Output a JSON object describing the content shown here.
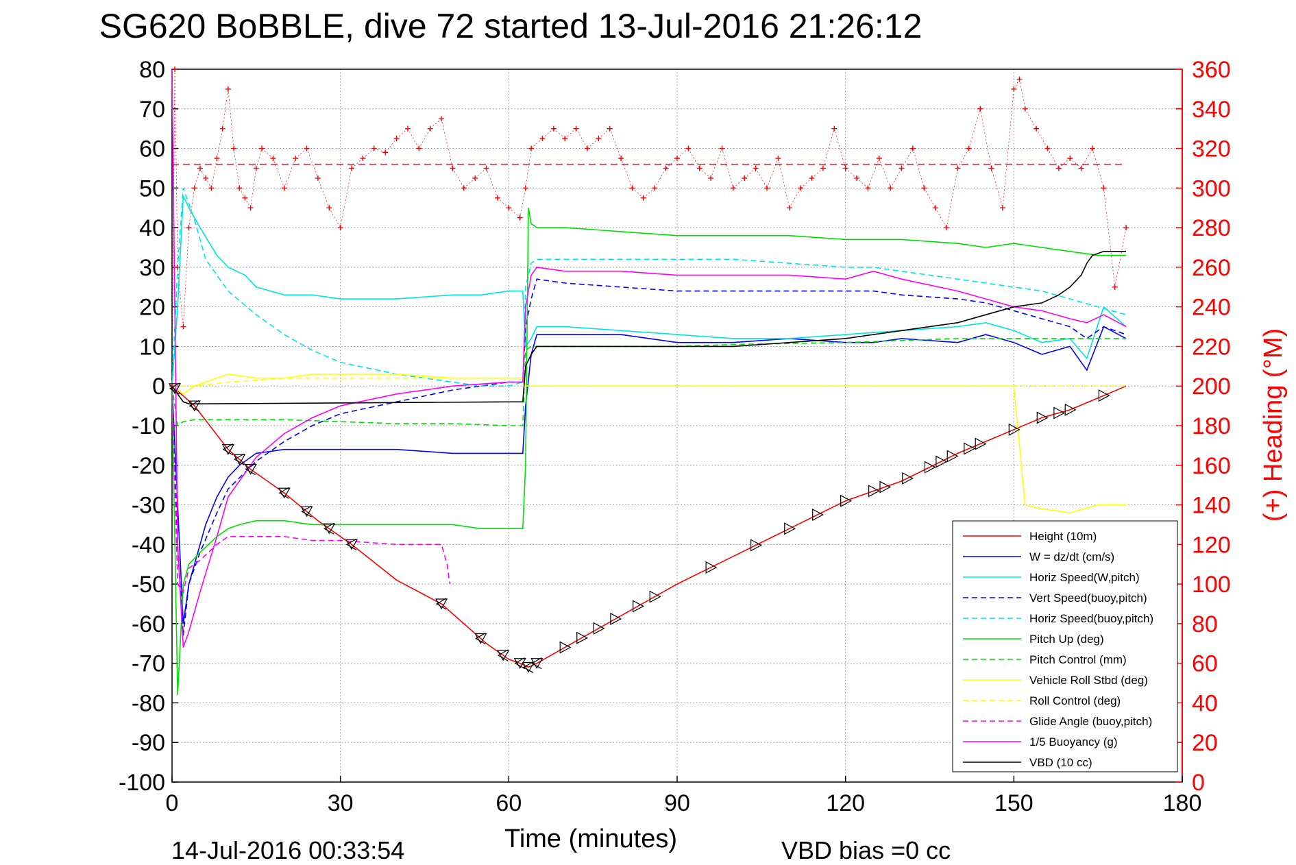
{
  "chart_data": {
    "type": "line",
    "title": "SG620 BoBBLE, dive 72 started 13-Jul-2016 21:26:12",
    "xlabel": "Time (minutes)",
    "ylabel_right": "(+) Heading (°M)",
    "xlim": [
      0,
      180
    ],
    "ylim": [
      -100,
      80
    ],
    "ylim_right": [
      0,
      360
    ],
    "x_ticks": [
      0,
      30,
      60,
      90,
      120,
      150,
      180
    ],
    "y_ticks": [
      80,
      70,
      60,
      50,
      40,
      30,
      20,
      10,
      0,
      -10,
      -20,
      -30,
      -40,
      -50,
      -60,
      -70,
      -80,
      -90,
      -100
    ],
    "y_ticks_right": [
      360,
      340,
      320,
      300,
      280,
      260,
      240,
      220,
      200,
      180,
      160,
      140,
      120,
      100,
      80,
      60,
      40,
      20,
      0
    ],
    "grid": true,
    "legend_position": "bottom-right",
    "footer_left": "14-Jul-2016 00:33:54",
    "footer_right": "VBD bias =0 cc",
    "heading_mean": 312,
    "colors": {
      "height": "#ff0000",
      "w": "#0000ff",
      "horiz": "#00e5e5",
      "pitch": "#00e000",
      "roll": "#ffff00",
      "buoy": "#ff00ff",
      "vbd": "#000000",
      "heading": "#ff0000"
    },
    "series": [
      {
        "name": "Height (10m)",
        "color": "#ff0000",
        "dash": "solid",
        "x": [
          0,
          4,
          10,
          14,
          20,
          26,
          32,
          40,
          48,
          52,
          56,
          60,
          62,
          63.5,
          65,
          70,
          80,
          90,
          100,
          110,
          120,
          130,
          140,
          150,
          155,
          160,
          165,
          170
        ],
        "y": [
          0,
          -5,
          -16,
          -21,
          -27,
          -34,
          -40,
          -49,
          -55,
          -60,
          -65,
          -69,
          -70,
          -71,
          -70,
          -66,
          -58,
          -50,
          -43,
          -36,
          -29,
          -24,
          -17,
          -11,
          -8,
          -6,
          -3,
          0
        ]
      },
      {
        "name": "W = dz/dt (cm/s)",
        "color": "#0000ff",
        "dash": "solid",
        "x": [
          0,
          1,
          2,
          3,
          4,
          6,
          8,
          10,
          12,
          15,
          20,
          25,
          30,
          40,
          50,
          55,
          60,
          62.5,
          63,
          64,
          65,
          70,
          80,
          90,
          100,
          110,
          120,
          125,
          130,
          140,
          145,
          150,
          155,
          160,
          163,
          166,
          170
        ],
        "y": [
          0,
          -30,
          -60,
          -50,
          -45,
          -35,
          -28,
          -23,
          -20,
          -17,
          -16,
          -16,
          -16,
          -16,
          -17,
          -17,
          -17,
          -17,
          -5,
          8,
          13,
          13,
          13,
          11,
          11,
          12,
          11,
          11,
          12,
          11,
          13,
          11,
          8,
          10,
          4,
          15,
          12
        ]
      },
      {
        "name": "Horiz Speed(W,pitch)",
        "color": "#00e5e5",
        "dash": "solid",
        "x": [
          0,
          1,
          2,
          3,
          5,
          8,
          10,
          13,
          15,
          20,
          25,
          30,
          40,
          50,
          55,
          60,
          62.5,
          63,
          64,
          65,
          70,
          80,
          90,
          100,
          110,
          120,
          130,
          140,
          145,
          150,
          155,
          160,
          163,
          166,
          170
        ],
        "y": [
          0,
          20,
          48,
          45,
          40,
          33,
          30,
          28,
          25,
          23,
          23,
          22,
          22,
          23,
          23,
          24,
          24,
          10,
          12,
          15,
          15,
          14,
          13,
          12,
          12,
          13,
          14,
          15,
          16,
          14,
          11,
          12,
          7,
          20,
          15
        ]
      },
      {
        "name": "Vert Speed(buoy,pitch)",
        "color": "#0000ff",
        "dash": "dashed",
        "x": [
          0,
          1,
          2,
          3,
          5,
          8,
          10,
          15,
          20,
          25,
          30,
          40,
          50,
          55,
          60,
          62.5,
          63,
          64,
          65,
          70,
          80,
          90,
          100,
          110,
          120,
          125,
          130,
          140,
          145,
          150,
          155,
          160,
          163,
          166,
          170
        ],
        "y": [
          0,
          -40,
          -63,
          -50,
          -42,
          -32,
          -26,
          -19,
          -14,
          -10,
          -7,
          -4,
          -1,
          0,
          1,
          1,
          15,
          22,
          27,
          26,
          25,
          24,
          24,
          24,
          24,
          24,
          23,
          22,
          21,
          19,
          17,
          15,
          12,
          15,
          13
        ]
      },
      {
        "name": "Horiz Speed(buoy,pitch)",
        "color": "#00e5e5",
        "dash": "dashed",
        "x": [
          0,
          1,
          2,
          4,
          6,
          10,
          15,
          20,
          25,
          30,
          40,
          50,
          55,
          60,
          62.5,
          63,
          64,
          65,
          70,
          80,
          90,
          100,
          110,
          120,
          125,
          130,
          140,
          145,
          150,
          155,
          160,
          165,
          170
        ],
        "y": [
          0,
          30,
          50,
          42,
          32,
          24,
          18,
          13,
          9,
          6,
          3,
          1,
          0,
          0,
          1,
          25,
          31,
          32,
          32,
          32,
          32,
          32,
          31,
          30,
          30,
          29,
          27,
          26,
          25,
          24,
          22,
          20,
          18
        ]
      },
      {
        "name": "Pitch Up (deg)",
        "color": "#00e000",
        "dash": "solid",
        "x": [
          0,
          1,
          2,
          3,
          5,
          8,
          10,
          12,
          15,
          20,
          25,
          30,
          40,
          50,
          55,
          60,
          62.5,
          63,
          63.5,
          64,
          65,
          70,
          80,
          90,
          100,
          110,
          120,
          130,
          140,
          145,
          150,
          155,
          160,
          165,
          170
        ],
        "y": [
          0,
          -78,
          -50,
          -45,
          -42,
          -38,
          -36,
          -35,
          -34,
          -34,
          -35,
          -35,
          -35,
          -35,
          -36,
          -36,
          -36,
          -20,
          45,
          41,
          40,
          40,
          39,
          38,
          38,
          38,
          37,
          37,
          36,
          35,
          36,
          35,
          34,
          33,
          33
        ]
      },
      {
        "name": "Pitch Control (mm)",
        "color": "#00e000",
        "dash": "dashed",
        "x": [
          0,
          1,
          2,
          4,
          10,
          20,
          30,
          40,
          50,
          60,
          62.5,
          63,
          64,
          65,
          90,
          100,
          120,
          130,
          140,
          150,
          160,
          170
        ],
        "y": [
          0,
          -10,
          -9,
          -8.5,
          -8.5,
          -8.5,
          -9,
          -9.5,
          -9.5,
          -10,
          -10,
          9,
          10,
          10,
          10,
          10.5,
          11,
          11.5,
          12,
          12,
          12,
          12
        ]
      },
      {
        "name": "Vehicle Roll Stbd (deg)",
        "color": "#ffff00",
        "dash": "solid",
        "x": [
          0,
          2,
          4,
          6,
          10,
          15,
          20,
          25,
          30,
          40,
          50,
          60,
          62.5,
          63,
          64,
          70,
          80,
          90,
          100,
          110,
          120,
          130,
          140,
          145,
          150,
          152,
          155,
          160,
          165,
          170
        ],
        "y": [
          0,
          -2,
          0,
          1,
          3,
          2,
          2,
          3,
          3,
          3,
          2,
          2,
          2,
          0,
          0,
          0,
          0,
          0,
          0,
          0,
          0,
          0,
          0,
          0,
          0,
          -30,
          -31,
          -32,
          -30,
          -30
        ]
      },
      {
        "name": "Roll Control (deg)",
        "color": "#ffff00",
        "dash": "dashed",
        "x": [
          0,
          2,
          4,
          10,
          20,
          30,
          40,
          50,
          60,
          62.5,
          63,
          64,
          70,
          80,
          90,
          100,
          110,
          120,
          130,
          140,
          150,
          160,
          170
        ],
        "y": [
          0,
          0,
          0,
          1,
          2,
          2,
          2,
          2,
          2,
          2,
          0,
          0,
          0,
          0,
          0,
          0,
          0,
          0,
          0,
          0,
          0,
          0,
          0
        ]
      },
      {
        "name": "Glide Angle (buoy,pitch)",
        "color": "#ff00ff",
        "dash": "dashed",
        "x": [
          0,
          1,
          2,
          3,
          5,
          8,
          10,
          15,
          20,
          25,
          30,
          40,
          48,
          49,
          49.5
        ],
        "y": [
          0,
          -50,
          -52,
          -46,
          -44,
          -40,
          -38,
          -38,
          -38,
          -39,
          -39,
          -40,
          -40,
          -45,
          -50
        ]
      },
      {
        "name": "1/5 Buoyancy (g)",
        "color": "#ff00ff",
        "dash": "solid",
        "x": [
          0,
          1,
          2,
          3,
          5,
          8,
          10,
          15,
          20,
          25,
          30,
          40,
          50,
          55,
          60,
          62.5,
          63,
          64,
          65,
          70,
          80,
          90,
          100,
          110,
          120,
          125,
          130,
          140,
          145,
          150,
          155,
          160,
          163,
          166,
          170
        ],
        "y": [
          80,
          -40,
          -66,
          -62,
          -52,
          -38,
          -28,
          -18,
          -12,
          -8,
          -5,
          -2,
          0,
          0.5,
          1,
          1,
          20,
          28,
          30,
          29,
          29,
          28,
          28,
          28,
          27,
          29,
          27,
          24,
          22,
          20,
          19,
          17,
          16,
          18,
          15
        ]
      },
      {
        "name": "VBD (10 cc)",
        "color": "#000000",
        "dash": "solid",
        "x": [
          0,
          1,
          2,
          3,
          4,
          5,
          60,
          62,
          62.5,
          63,
          64,
          65,
          70,
          90,
          100,
          110,
          120,
          125,
          130,
          135,
          140,
          145,
          150,
          155,
          158,
          160,
          162,
          163,
          164,
          166,
          170
        ],
        "y": [
          0,
          -2,
          -4,
          -4.5,
          -4.5,
          -4.5,
          -4,
          -4,
          -4,
          5,
          8,
          10,
          10,
          10,
          10,
          11,
          12,
          13,
          14,
          15,
          16,
          18,
          20,
          21,
          23,
          25,
          28,
          31,
          33,
          34,
          34
        ]
      }
    ],
    "heading": {
      "name": "(+) Heading (°M)",
      "x": [
        0,
        0.5,
        1,
        2,
        3,
        4,
        5,
        6,
        7,
        8,
        9,
        10,
        11,
        12,
        13,
        14,
        15,
        16,
        18,
        20,
        22,
        24,
        26,
        28,
        30,
        32,
        34,
        36,
        38,
        40,
        42,
        44,
        46,
        48,
        50,
        52,
        54,
        56,
        58,
        60,
        62,
        63,
        64,
        66,
        68,
        70,
        72,
        74,
        76,
        78,
        80,
        82,
        84,
        86,
        88,
        90,
        92,
        94,
        96,
        98,
        100,
        102,
        104,
        106,
        108,
        110,
        112,
        114,
        116,
        118,
        120,
        122,
        124,
        126,
        128,
        130,
        132,
        134,
        136,
        138,
        140,
        142,
        144,
        146,
        148,
        150,
        151,
        152,
        154,
        156,
        158,
        160,
        162,
        164,
        166,
        168,
        170
      ],
      "y": [
        200,
        360,
        260,
        230,
        280,
        300,
        310,
        305,
        300,
        315,
        330,
        350,
        320,
        300,
        295,
        290,
        310,
        320,
        315,
        300,
        315,
        320,
        305,
        290,
        280,
        310,
        315,
        320,
        318,
        325,
        330,
        320,
        330,
        335,
        310,
        300,
        305,
        310,
        295,
        290,
        285,
        300,
        320,
        325,
        330,
        325,
        330,
        320,
        325,
        330,
        315,
        300,
        295,
        300,
        310,
        315,
        320,
        310,
        305,
        320,
        300,
        305,
        310,
        300,
        315,
        290,
        300,
        305,
        310,
        330,
        310,
        305,
        300,
        315,
        300,
        310,
        320,
        300,
        290,
        280,
        310,
        320,
        340,
        310,
        290,
        350,
        355,
        340,
        330,
        320,
        310,
        315,
        310,
        320,
        300,
        250,
        280
      ]
    },
    "height_markers": {
      "down_x": [
        0.5,
        4,
        10,
        12,
        14,
        20,
        24,
        28,
        32,
        48,
        55,
        59,
        62,
        63.5,
        65
      ],
      "up_x": [
        70,
        73,
        76,
        79,
        83,
        86,
        96,
        104,
        110,
        115,
        120,
        125,
        127,
        131,
        135,
        137,
        139,
        142,
        144,
        150,
        155,
        158,
        160,
        166
      ]
    }
  }
}
